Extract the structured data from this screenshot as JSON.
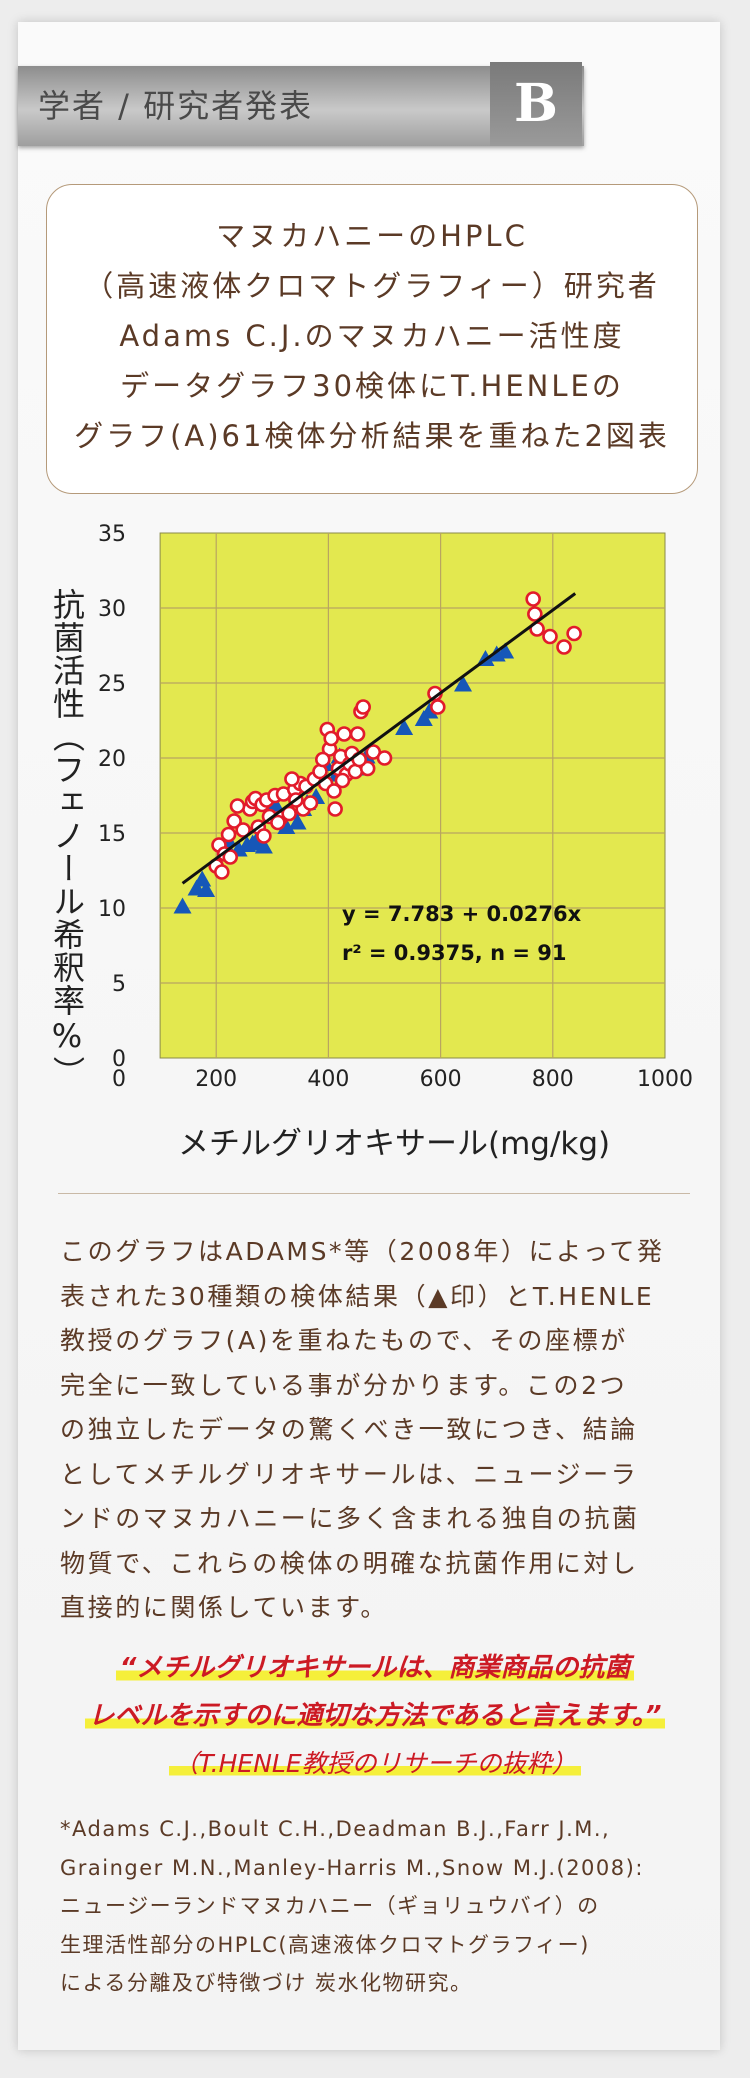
{
  "header": {
    "title": "学者 / 研究者発表",
    "badge": "B"
  },
  "intro": {
    "lines": [
      "マヌカハニーのHPLC",
      "（高速液体クロマトグラフィー）研究者",
      "Adams C.J.のマヌカハニー活性度",
      "データグラフ30検体にT.HENLEの",
      "グラフ(A)61検体分析結果を重ねた2図表"
    ]
  },
  "chart_data": {
    "type": "scatter",
    "xlabel": "メチルグリオキサール(mg/kg)",
    "ylabel": "抗菌活性（フェノール希釈率%）",
    "xlim": [
      0,
      1000
    ],
    "ylim": [
      0,
      35
    ],
    "x_ticks": [
      "200",
      "400",
      "600",
      "800",
      "1000"
    ],
    "y_ticks": [
      "0",
      "5",
      "10",
      "15",
      "20",
      "25",
      "30",
      "35"
    ],
    "grid": true,
    "background_color": "#e3e84f",
    "series": [
      {
        "marker": "circle",
        "color": "#e21b2b",
        "points": [
          [
            200,
            12.8
          ],
          [
            205,
            14.2
          ],
          [
            210,
            12.4
          ],
          [
            215,
            13.6
          ],
          [
            222,
            14.9
          ],
          [
            225,
            13.4
          ],
          [
            260,
            16.6
          ],
          [
            265,
            17.1
          ],
          [
            270,
            17.3
          ],
          [
            275,
            15.4
          ],
          [
            282,
            16.9
          ],
          [
            290,
            17.2
          ],
          [
            295,
            16.1
          ],
          [
            305,
            17.5
          ],
          [
            315,
            16.0
          ],
          [
            320,
            17.6
          ],
          [
            330,
            16.3
          ],
          [
            340,
            17.9
          ],
          [
            350,
            18.3
          ],
          [
            355,
            16.6
          ],
          [
            360,
            18.1
          ],
          [
            368,
            17.0
          ],
          [
            375,
            18.6
          ],
          [
            385,
            19.1
          ],
          [
            395,
            18.3
          ],
          [
            398,
            21.9
          ],
          [
            402,
            20.6
          ],
          [
            405,
            21.3
          ],
          [
            410,
            17.8
          ],
          [
            412,
            16.6
          ],
          [
            418,
            19.3
          ],
          [
            422,
            20.1
          ],
          [
            428,
            21.6
          ],
          [
            432,
            18.9
          ],
          [
            438,
            19.6
          ],
          [
            442,
            20.3
          ],
          [
            448,
            19.1
          ],
          [
            452,
            21.6
          ],
          [
            458,
            23.1
          ],
          [
            462,
            23.4
          ],
          [
            470,
            19.3
          ],
          [
            480,
            20.4
          ],
          [
            590,
            24.3
          ],
          [
            595,
            23.4
          ],
          [
            765,
            30.6
          ],
          [
            768,
            29.6
          ],
          [
            772,
            28.6
          ],
          [
            795,
            28.1
          ],
          [
            820,
            27.4
          ],
          [
            838,
            28.3
          ],
          [
            232,
            15.8
          ],
          [
            238,
            16.8
          ],
          [
            248,
            15.2
          ],
          [
            285,
            14.8
          ],
          [
            342,
            17.2
          ],
          [
            390,
            19.9
          ],
          [
            425,
            18.5
          ],
          [
            455,
            19.9
          ],
          [
            500,
            20.0
          ],
          [
            335,
            18.6
          ],
          [
            310,
            15.7
          ]
        ]
      },
      {
        "marker": "triangle",
        "color": "#1657b8",
        "points": [
          [
            140,
            10.1
          ],
          [
            165,
            11.3
          ],
          [
            175,
            11.9
          ],
          [
            182,
            11.2
          ],
          [
            215,
            14.3
          ],
          [
            220,
            14.6
          ],
          [
            255,
            14.2
          ],
          [
            265,
            14.3
          ],
          [
            272,
            14.5
          ],
          [
            285,
            14.1
          ],
          [
            325,
            15.4
          ],
          [
            345,
            15.7
          ],
          [
            355,
            16.6
          ],
          [
            362,
            17.0
          ],
          [
            378,
            17.4
          ],
          [
            395,
            19.6
          ],
          [
            415,
            18.9
          ],
          [
            420,
            20.1
          ],
          [
            448,
            19.6
          ],
          [
            468,
            20.1
          ],
          [
            535,
            22.0
          ],
          [
            570,
            22.6
          ],
          [
            580,
            23.1
          ],
          [
            640,
            24.9
          ],
          [
            680,
            26.6
          ],
          [
            700,
            26.9
          ],
          [
            715,
            27.1
          ],
          [
            305,
            16.9
          ],
          [
            240,
            13.9
          ],
          [
            460,
            19.3
          ]
        ]
      }
    ],
    "trendline": {
      "intercept": 7.783,
      "slope": 0.0276,
      "x_range": [
        140,
        840
      ]
    },
    "annotation": {
      "equation": "y = 7.783 + 0.0276x",
      "stats": "r² = 0.9375,  n = 91"
    }
  },
  "body": {
    "lines": [
      "このグラフはADAMS*等（2008年）によって発",
      "表された30種類の検体結果（▲印）とT.HENLE",
      "教授のグラフ(A)を重ねたもので、その座標が",
      "完全に一致している事が分かります。この2つ",
      "の独立したデータの驚くべき一致につき、結論",
      "としてメチルグリオキサールは、ニュージーラ",
      "ンドのマヌカハニーに多く含まれる独自の抗菌",
      "物質で、これらの検体の明確な抗菌作用に対し",
      "直接的に関係しています。"
    ]
  },
  "quote": {
    "line1": "“メチルグリオキサールは、商業商品の抗菌",
    "line2": "レベルを示すのに適切な方法であると言えます。”",
    "source": "（T.HENLE教授のリサーチの抜粋）"
  },
  "footnote": {
    "lines": [
      "*Adams C.J.,Boult C.H.,Deadman B.J.,Farr J.M.,",
      "Grainger M.N.,Manley-Harris M.,Snow M.J.(2008):",
      "ニュージーランドマヌカハニー（ギョリュウバイ）の",
      "生理活性部分のHPLC(高速液体クロマトグラフィー)",
      "による分離及び特徴づけ 炭水化物研究。"
    ]
  }
}
